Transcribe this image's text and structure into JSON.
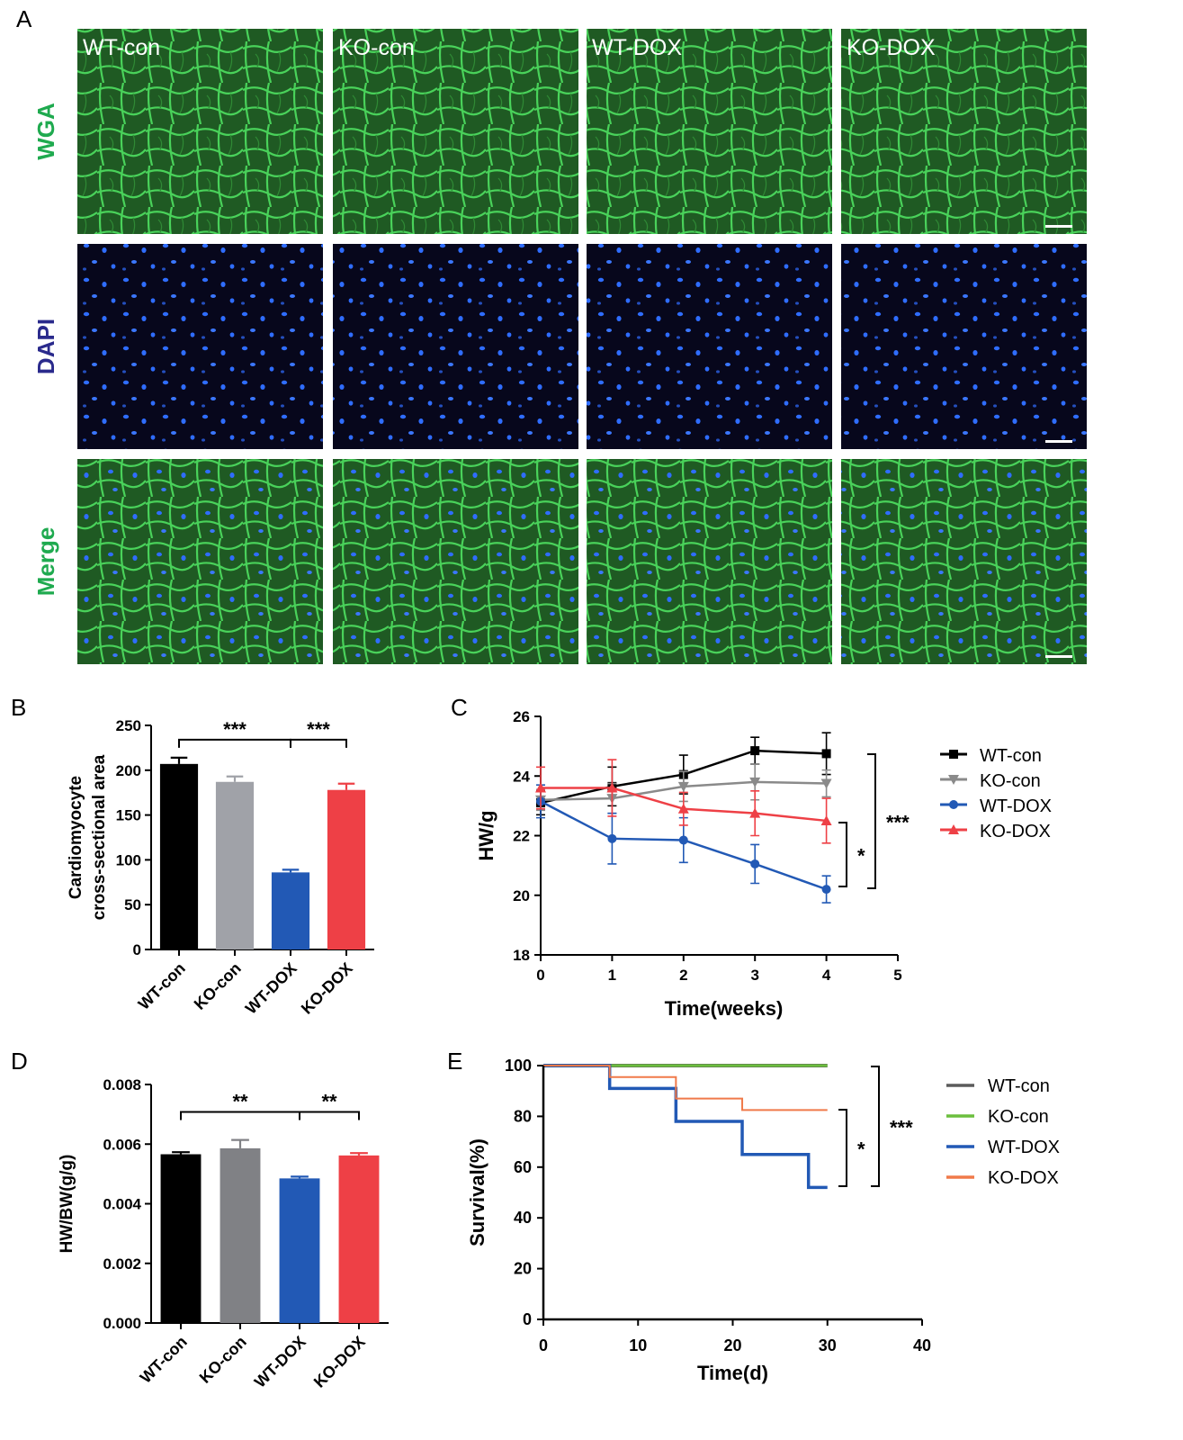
{
  "panel_a": {
    "letter": "A",
    "columns": [
      "WT-con",
      "KO-con",
      "WT-DOX",
      "KO-DOX"
    ],
    "rows": [
      {
        "label": "WGA",
        "stain": "wga"
      },
      {
        "label": "DAPI",
        "stain": "dapi"
      },
      {
        "label": "Merge",
        "stain": "merge"
      }
    ],
    "colors": {
      "wga_label": "#1faa4f",
      "dapi_label": "#2a2a8c",
      "merge_label": "#1faa4f",
      "tissue": "#1f5a23",
      "membrane": "#49d25a",
      "nucleus": "#2f6dff",
      "background": "#06061a"
    }
  },
  "chart_data": [
    {
      "panel": "B",
      "type": "bar",
      "title": "",
      "ylabel_lines": [
        "Cardiomyocyte",
        "cross-sectional area"
      ],
      "xlabel": "",
      "categories": [
        "WT-con",
        "KO-con",
        "WT-DOX",
        "KO-DOX"
      ],
      "values": [
        207,
        187,
        86,
        178
      ],
      "errors": [
        7,
        6,
        3,
        7
      ],
      "colors": [
        "#000000",
        "#a0a2a8",
        "#2259b5",
        "#ee4046"
      ],
      "ylim": [
        0,
        250
      ],
      "yticks": [
        "0",
        "50",
        "100",
        "150",
        "200",
        "250"
      ],
      "significance": [
        {
          "from": 0,
          "to": 2,
          "label": "***",
          "y": 234
        },
        {
          "from": 2,
          "to": 3,
          "label": "***",
          "y": 234
        }
      ]
    },
    {
      "panel": "C",
      "type": "line",
      "title": "",
      "xlabel": "Time(weeks)",
      "ylabel": "HW/g",
      "xlim": [
        0,
        5
      ],
      "ylim": [
        18,
        26
      ],
      "xticks": [
        "0",
        "1",
        "2",
        "3",
        "4",
        "5"
      ],
      "yticks": [
        "18",
        "20",
        "22",
        "24",
        "26"
      ],
      "x": [
        0,
        1,
        2,
        3,
        4
      ],
      "series": [
        {
          "name": "WT-con",
          "color": "#000000",
          "marker": "square",
          "values": [
            23.1,
            23.65,
            24.05,
            24.85,
            24.75
          ],
          "errors": [
            0.4,
            0.65,
            0.65,
            0.45,
            0.7
          ]
        },
        {
          "name": "KO-con",
          "color": "#8a8a8a",
          "marker": "triangle-down",
          "values": [
            23.2,
            23.25,
            23.65,
            23.8,
            23.75
          ],
          "errors": [
            0.35,
            0.5,
            0.5,
            0.6,
            0.45
          ]
        },
        {
          "name": "WT-DOX",
          "color": "#2259b5",
          "marker": "circle",
          "values": [
            23.15,
            21.9,
            21.85,
            21.05,
            20.2
          ],
          "errors": [
            0.55,
            0.85,
            0.75,
            0.65,
            0.45
          ]
        },
        {
          "name": "KO-DOX",
          "color": "#ee4046",
          "marker": "triangle-up",
          "values": [
            23.6,
            23.6,
            22.9,
            22.75,
            22.5
          ],
          "errors": [
            0.7,
            0.95,
            0.55,
            0.75,
            0.75
          ]
        }
      ],
      "significance": [
        {
          "label": "*",
          "between": [
            "KO-DOX",
            "WT-DOX"
          ]
        },
        {
          "label": "***",
          "between": [
            "WT-con",
            "WT-DOX"
          ]
        }
      ]
    },
    {
      "panel": "D",
      "type": "bar",
      "title": "",
      "ylabel": "HW/BW(g/g)",
      "xlabel": "",
      "categories": [
        "WT-con",
        "KO-con",
        "WT-DOX",
        "KO-DOX"
      ],
      "values": [
        0.00566,
        0.00586,
        0.00485,
        0.00562
      ],
      "errors": [
        7e-05,
        0.00028,
        6e-05,
        8e-05
      ],
      "colors": [
        "#000000",
        "#808185",
        "#2259b5",
        "#ee4046"
      ],
      "ylim": [
        0,
        0.008
      ],
      "yticks": [
        "0.000",
        "0.002",
        "0.004",
        "0.006",
        "0.008"
      ],
      "significance": [
        {
          "from": 0,
          "to": 2,
          "label": "**",
          "y": 0.00708
        },
        {
          "from": 2,
          "to": 3,
          "label": "**",
          "y": 0.00708
        }
      ]
    },
    {
      "panel": "E",
      "type": "line",
      "subtype": "survival-step",
      "title": "",
      "xlabel": "Time(d)",
      "ylabel": "Survival(%)",
      "xlim": [
        0,
        40
      ],
      "ylim": [
        0,
        100
      ],
      "xticks": [
        "0",
        "10",
        "20",
        "30",
        "40"
      ],
      "yticks": [
        "0",
        "20",
        "40",
        "60",
        "80",
        "100"
      ],
      "series": [
        {
          "name": "WT-con",
          "color": "#5b5b5b",
          "x": [
            0,
            30
          ],
          "values": [
            100,
            100
          ]
        },
        {
          "name": "KO-con",
          "color": "#6cbf3e",
          "x": [
            0,
            30
          ],
          "values": [
            100,
            100
          ]
        },
        {
          "name": "WT-DOX",
          "color": "#2259b5",
          "x": [
            0,
            7,
            14,
            21,
            28,
            30
          ],
          "values": [
            100,
            91,
            78,
            65,
            52,
            52
          ]
        },
        {
          "name": "KO-DOX",
          "color": "#f07a4a",
          "x": [
            0,
            7,
            14,
            21,
            30
          ],
          "values": [
            100,
            95.5,
            87,
            82.5,
            82.5
          ]
        }
      ],
      "significance": [
        {
          "label": "*",
          "between": [
            "KO-DOX",
            "WT-DOX"
          ]
        },
        {
          "label": "***",
          "between": [
            "WT-con",
            "WT-DOX"
          ]
        }
      ]
    }
  ]
}
